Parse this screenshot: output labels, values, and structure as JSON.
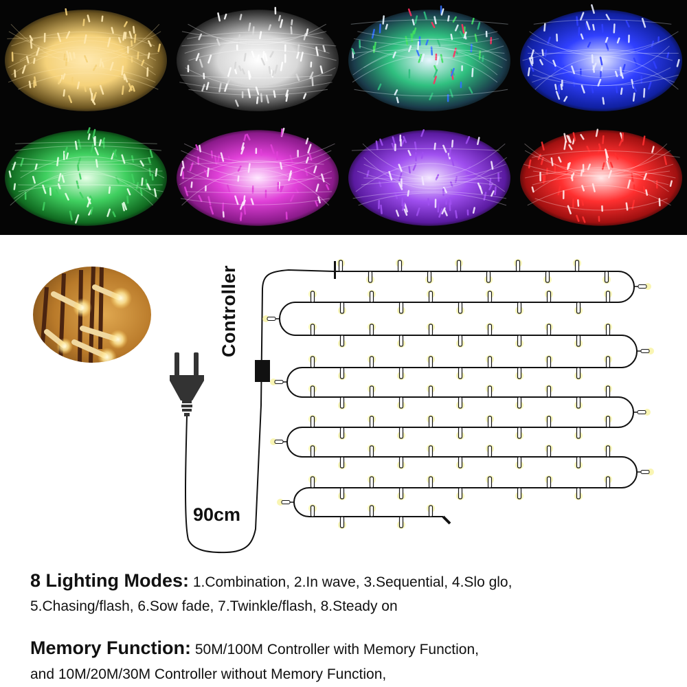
{
  "photo_grid": {
    "tiles": [
      {
        "name": "warm-white",
        "base": "#6b5420",
        "glow": "#ffe9b0",
        "accent": "#f5d27a"
      },
      {
        "name": "cool-white",
        "base": "#3a3a3a",
        "glow": "#ffffff",
        "accent": "#d8d8d8"
      },
      {
        "name": "multicolor",
        "base": "#1a3a4a",
        "glow": "#e8f6ff",
        "accent": "#30c080",
        "extra": [
          "#ff3060",
          "#3070ff",
          "#40e060"
        ]
      },
      {
        "name": "blue",
        "base": "#1020a0",
        "glow": "#e8ecff",
        "accent": "#3040ff"
      },
      {
        "name": "green",
        "base": "#106a20",
        "glow": "#e8ffe8",
        "accent": "#40d060"
      },
      {
        "name": "pink",
        "base": "#8a1a8a",
        "glow": "#ffe8ff",
        "accent": "#e040d8"
      },
      {
        "name": "purple",
        "base": "#5a1aa0",
        "glow": "#f4e8ff",
        "accent": "#a050f0"
      },
      {
        "name": "red",
        "base": "#a01010",
        "glow": "#ffe8e8",
        "accent": "#ff3030"
      }
    ]
  },
  "diagram": {
    "controller_label": "Controller",
    "cable_length_label": "90cm",
    "wire_color": "#111111",
    "bulb_glow_color": "#f7f3a0"
  },
  "features": {
    "lighting_modes": {
      "heading": "8 Lighting Modes:",
      "line1": " 1.Combination, 2.In wave, 3.Sequential, 4.Slo glo,",
      "line2": "5.Chasing/flash, 6.Sow fade, 7.Twinkle/flash, 8.Steady on",
      "modes": [
        "1.Combination",
        "2.In wave",
        "3.Sequential",
        "4.Slo glo",
        "5.Chasing/flash",
        "6.Sow fade",
        "7.Twinkle/flash",
        "8.Steady on"
      ]
    },
    "memory_function": {
      "heading": "Memory Function:",
      "line1": " 50M/100M Controller with Memory Function,",
      "line2": "and 10M/20M/30M Controller without Memory Function,"
    }
  }
}
